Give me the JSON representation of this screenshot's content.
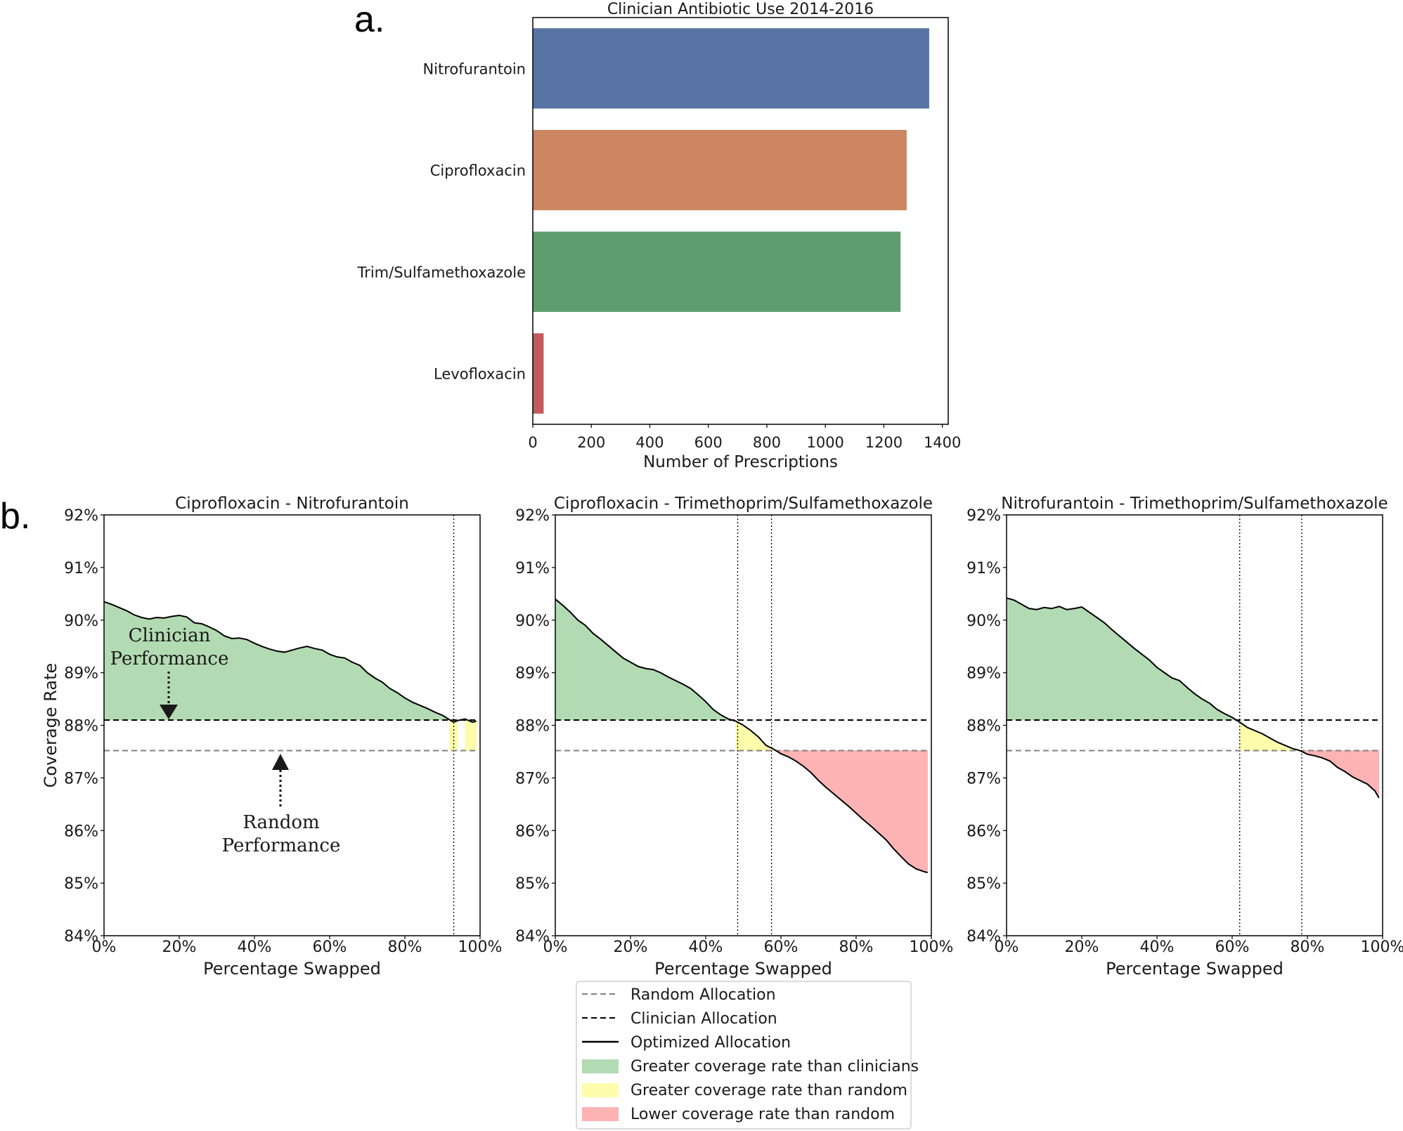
{
  "panel_labels": {
    "a": "a.",
    "b": "b."
  },
  "colors": {
    "bar": [
      "#5874a4",
      "#cc8762",
      "#5e9e6e",
      "#c05a5e"
    ],
    "green_fill": "#b3dbb3",
    "yellow_fill": "#fdfdac",
    "red_fill": "#fdb3b4",
    "line": "#000000",
    "random_line": "#808080"
  },
  "annotations": {
    "clinician": [
      "Clinician",
      "Performance"
    ],
    "random": [
      "Random",
      "Performance"
    ]
  },
  "legend": {
    "items": [
      "Random Allocation",
      "Clinician Allocation",
      "Optimized Allocation",
      "Greater coverage rate than clinicians",
      "Greater coverage rate than random",
      "Lower coverage rate than random"
    ]
  },
  "chart_data": [
    {
      "type": "bar",
      "orientation": "horizontal",
      "title": "Clinician Antibiotic Use 2014-2016",
      "xlabel": "Number of Prescriptions",
      "ylabel": "",
      "categories": [
        "Nitrofurantoin",
        "Ciprofloxacin",
        "Trim/Sulfamethoxazole",
        "Levofloxacin"
      ],
      "values": [
        1355,
        1278,
        1257,
        37
      ],
      "xlim": [
        0,
        1420
      ],
      "xticks": [
        0,
        200,
        400,
        600,
        800,
        1000,
        1200,
        1400
      ]
    },
    {
      "type": "line",
      "title": "Ciprofloxacin - Nitrofurantoin",
      "xlabel": "Percentage Swapped",
      "ylabel": "Coverage Rate",
      "xlim": [
        0,
        100
      ],
      "ylim": [
        84,
        92
      ],
      "xtick_labels": [
        "0%",
        "20%",
        "40%",
        "60%",
        "80%",
        "100%"
      ],
      "ytick_labels": [
        "84%",
        "85%",
        "86%",
        "87%",
        "88%",
        "89%",
        "90%",
        "91%",
        "92%"
      ],
      "clinician_allocation": 88.1,
      "random_allocation": 87.52,
      "crossover_lines": [
        93
      ],
      "optimized": {
        "x": [
          0,
          2,
          4,
          6,
          8,
          10,
          12,
          14,
          16,
          18,
          20,
          22,
          24,
          26,
          28,
          30,
          32,
          34,
          36,
          38,
          40,
          42,
          44,
          46,
          48,
          50,
          52,
          54,
          56,
          58,
          60,
          62,
          64,
          66,
          68,
          70,
          72,
          74,
          76,
          78,
          80,
          82,
          84,
          86,
          88,
          90,
          92,
          93,
          94,
          96,
          98,
          99
        ],
        "y": [
          90.35,
          90.3,
          90.24,
          90.18,
          90.1,
          90.05,
          90.02,
          90.05,
          90.04,
          90.07,
          90.09,
          90.06,
          89.95,
          89.93,
          89.87,
          89.8,
          89.7,
          89.65,
          89.66,
          89.63,
          89.56,
          89.5,
          89.45,
          89.41,
          89.39,
          89.43,
          89.47,
          89.5,
          89.46,
          89.43,
          89.35,
          89.3,
          89.28,
          89.2,
          89.14,
          89.0,
          88.9,
          88.82,
          88.7,
          88.62,
          88.52,
          88.44,
          88.38,
          88.32,
          88.25,
          88.19,
          88.1,
          88.06,
          88.09,
          88.12,
          88.06,
          88.08
        ]
      }
    },
    {
      "type": "line",
      "title": "Ciprofloxacin - Trimethoprim/Sulfamethoxazole",
      "xlabel": "Percentage Swapped",
      "ylabel": "",
      "xlim": [
        0,
        100
      ],
      "ylim": [
        84,
        92
      ],
      "xtick_labels": [
        "0%",
        "20%",
        "40%",
        "60%",
        "80%",
        "100%"
      ],
      "ytick_labels": [
        "84%",
        "85%",
        "86%",
        "87%",
        "88%",
        "89%",
        "90%",
        "91%",
        "92%"
      ],
      "clinician_allocation": 88.1,
      "random_allocation": 87.52,
      "crossover_lines": [
        48.5,
        57.5
      ],
      "optimized": {
        "x": [
          0,
          2,
          4,
          6,
          8,
          10,
          12,
          14,
          16,
          18,
          20,
          22,
          24,
          26,
          28,
          30,
          32,
          34,
          36,
          38,
          40,
          42,
          44,
          46,
          48,
          50,
          52,
          54,
          56,
          58,
          60,
          62,
          64,
          66,
          68,
          70,
          72,
          74,
          76,
          78,
          80,
          82,
          84,
          86,
          88,
          90,
          92,
          94,
          96,
          98,
          99
        ],
        "y": [
          90.4,
          90.28,
          90.15,
          90.0,
          89.9,
          89.75,
          89.64,
          89.52,
          89.4,
          89.28,
          89.2,
          89.12,
          89.08,
          89.06,
          89.0,
          88.92,
          88.85,
          88.78,
          88.7,
          88.58,
          88.45,
          88.3,
          88.2,
          88.12,
          88.08,
          88.0,
          87.9,
          87.78,
          87.62,
          87.55,
          87.46,
          87.4,
          87.32,
          87.22,
          87.1,
          86.95,
          86.82,
          86.7,
          86.58,
          86.46,
          86.33,
          86.2,
          86.08,
          85.95,
          85.82,
          85.65,
          85.5,
          85.36,
          85.27,
          85.22,
          85.2
        ]
      }
    },
    {
      "type": "line",
      "title": "Nitrofurantoin - Trimethoprim/Sulfamethoxazole",
      "xlabel": "Percentage Swapped",
      "ylabel": "",
      "xlim": [
        0,
        100
      ],
      "ylim": [
        84,
        92
      ],
      "xtick_labels": [
        "0%",
        "20%",
        "40%",
        "60%",
        "80%",
        "100%"
      ],
      "ytick_labels": [
        "84%",
        "85%",
        "86%",
        "87%",
        "88%",
        "89%",
        "90%",
        "91%",
        "92%"
      ],
      "clinician_allocation": 88.1,
      "random_allocation": 87.52,
      "crossover_lines": [
        62,
        78.5
      ],
      "optimized": {
        "x": [
          0,
          2,
          4,
          6,
          8,
          10,
          12,
          14,
          16,
          18,
          20,
          22,
          24,
          26,
          28,
          30,
          32,
          34,
          36,
          38,
          40,
          42,
          44,
          46,
          48,
          50,
          52,
          54,
          56,
          58,
          60,
          62,
          64,
          66,
          68,
          70,
          72,
          74,
          76,
          78,
          80,
          82,
          84,
          86,
          88,
          90,
          92,
          94,
          96,
          98,
          99
        ],
        "y": [
          90.42,
          90.38,
          90.3,
          90.22,
          90.2,
          90.24,
          90.22,
          90.26,
          90.2,
          90.22,
          90.25,
          90.15,
          90.05,
          89.95,
          89.82,
          89.7,
          89.58,
          89.46,
          89.35,
          89.24,
          89.1,
          89.0,
          88.9,
          88.85,
          88.72,
          88.6,
          88.5,
          88.42,
          88.3,
          88.22,
          88.15,
          88.06,
          87.96,
          87.9,
          87.84,
          87.76,
          87.68,
          87.62,
          87.56,
          87.52,
          87.45,
          87.42,
          87.38,
          87.32,
          87.2,
          87.12,
          87.02,
          86.95,
          86.88,
          86.75,
          86.62
        ]
      }
    }
  ]
}
